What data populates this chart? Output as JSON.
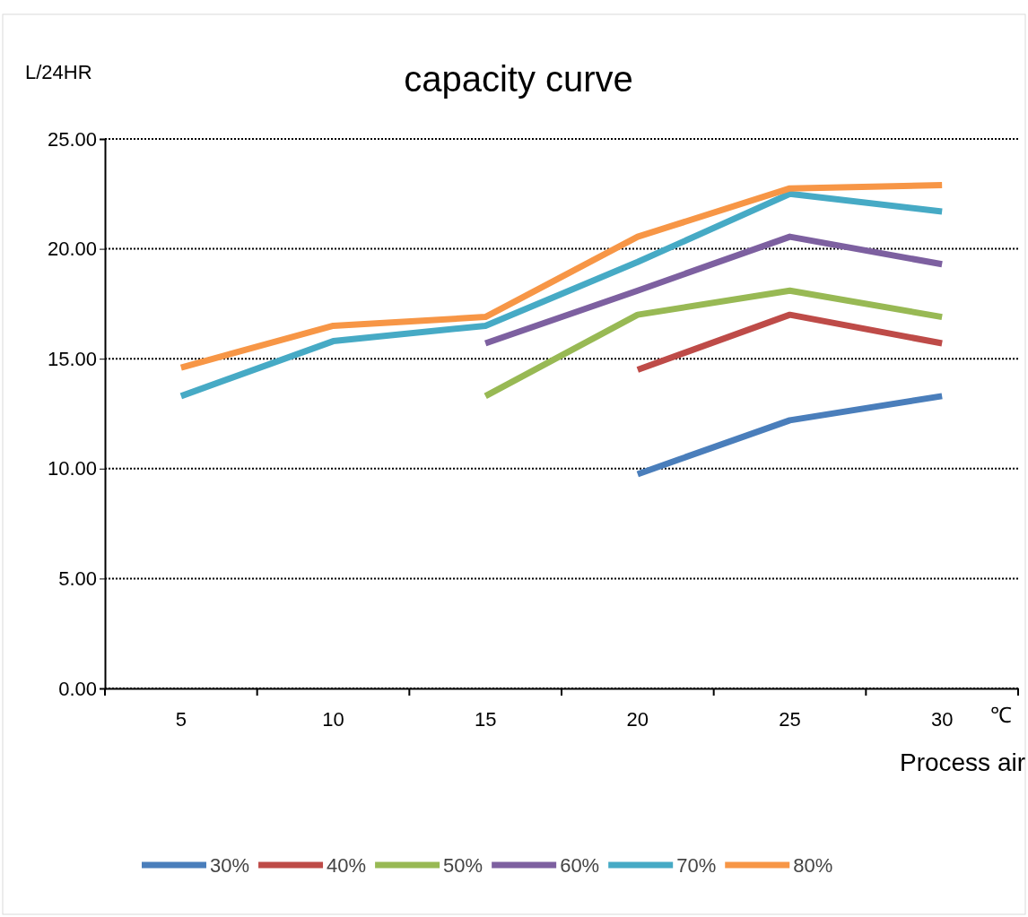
{
  "chart_data": {
    "type": "line",
    "title": "capacity curve",
    "ylabel": "L/24HR",
    "xlabel": "Process air",
    "annotations": [
      "℃"
    ],
    "categories": [
      "5",
      "10",
      "15",
      "20",
      "25",
      "30"
    ],
    "ylim": [
      0,
      25
    ],
    "yticks": [
      {
        "value": 0,
        "label": "0.00"
      },
      {
        "value": 5,
        "label": "5.00"
      },
      {
        "value": 10,
        "label": "10.00"
      },
      {
        "value": 15,
        "label": "15.00"
      },
      {
        "value": 20,
        "label": "20.00"
      },
      {
        "value": 25,
        "label": "25.00"
      }
    ],
    "grid": "y",
    "legend": "bottom",
    "marker": "none",
    "series": [
      {
        "name": "30%",
        "color": "#4a7ebb",
        "values": [
          null,
          null,
          null,
          9.75,
          12.2,
          13.3
        ]
      },
      {
        "name": "40%",
        "color": "#be4b48",
        "values": [
          null,
          null,
          null,
          14.5,
          17.0,
          15.7
        ]
      },
      {
        "name": "50%",
        "color": "#98b954",
        "values": [
          null,
          null,
          13.3,
          17.0,
          18.1,
          16.9
        ]
      },
      {
        "name": "60%",
        "color": "#7d60a0",
        "values": [
          null,
          null,
          15.7,
          18.1,
          20.55,
          19.3
        ]
      },
      {
        "name": "70%",
        "color": "#46aac5",
        "values": [
          13.3,
          15.8,
          16.5,
          19.4,
          22.5,
          21.7
        ]
      },
      {
        "name": "80%",
        "color": "#f79646",
        "values": [
          14.6,
          16.5,
          16.9,
          20.55,
          22.75,
          22.9
        ]
      }
    ]
  }
}
